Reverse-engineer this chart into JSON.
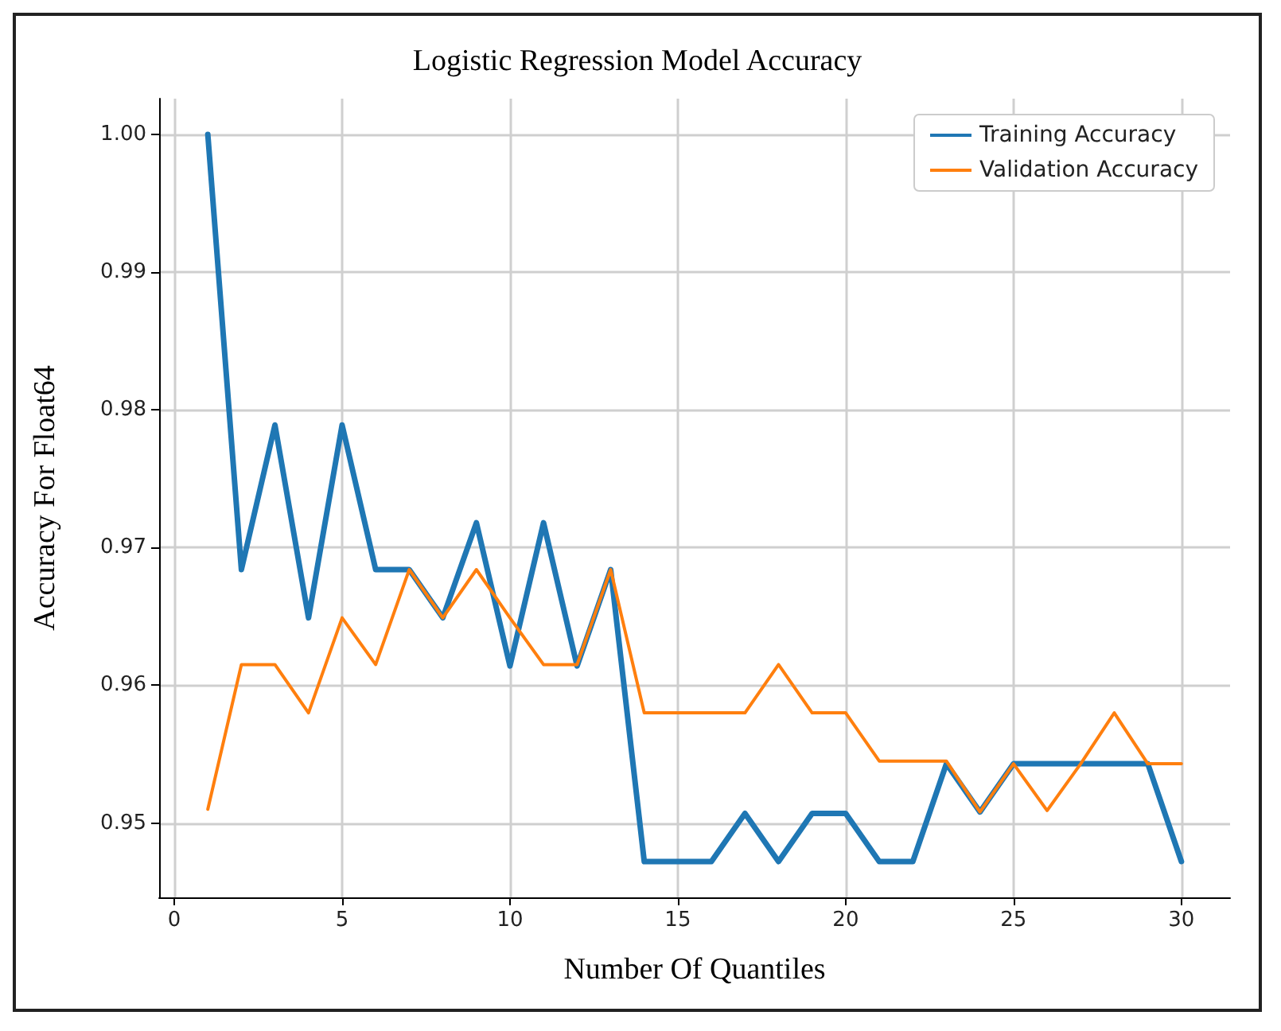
{
  "chart_data": {
    "type": "line",
    "title": "Logistic Regression Model Accuracy",
    "xlabel": "Number Of Quantiles",
    "ylabel": "Accuracy For Float64",
    "x": [
      1,
      2,
      3,
      4,
      5,
      6,
      7,
      8,
      9,
      10,
      11,
      12,
      13,
      14,
      15,
      16,
      17,
      18,
      19,
      20,
      21,
      22,
      23,
      24,
      25,
      26,
      27,
      28,
      29,
      30
    ],
    "series": [
      {
        "name": "Training Accuracy",
        "color": "#1f77b4",
        "values": [
          1.0,
          0.9684,
          0.9789,
          0.9649,
          0.9789,
          0.9684,
          0.9684,
          0.9649,
          0.9718,
          0.9614,
          0.9718,
          0.9614,
          0.9684,
          0.9472,
          0.9472,
          0.9472,
          0.9507,
          0.9472,
          0.9507,
          0.9507,
          0.9472,
          0.9472,
          0.9543,
          0.9508,
          0.9543,
          0.9543,
          0.9543,
          0.9543,
          0.9543,
          0.9472
        ]
      },
      {
        "name": "Validation Accuracy",
        "color": "#ff7f0e",
        "values": [
          0.951,
          0.9615,
          0.9615,
          0.958,
          0.9649,
          0.9615,
          0.9684,
          0.9649,
          0.9684,
          0.9649,
          0.9615,
          0.9615,
          0.9684,
          0.958,
          0.958,
          0.958,
          0.958,
          0.9615,
          0.958,
          0.958,
          0.9545,
          0.9545,
          0.9545,
          0.9508,
          0.9543,
          0.9509,
          0.9543,
          0.958,
          0.9543,
          0.9543
        ]
      }
    ],
    "xlim": [
      -0.45,
      31.45
    ],
    "xticks": [
      0,
      5,
      10,
      15,
      20,
      25,
      30
    ],
    "ylim": [
      0.9446,
      1.0026
    ],
    "yticks": [
      {
        "value": 0.95,
        "label": "0.95"
      },
      {
        "value": 0.96,
        "label": "0.96"
      },
      {
        "value": 0.97,
        "label": "0.97"
      },
      {
        "value": 0.98,
        "label": "0.98"
      },
      {
        "value": 0.99,
        "label": "0.99"
      },
      {
        "value": 1.0,
        "label": "1.00"
      }
    ],
    "grid": true,
    "legend": "top right",
    "marker": "none",
    "line_style": "solid"
  }
}
